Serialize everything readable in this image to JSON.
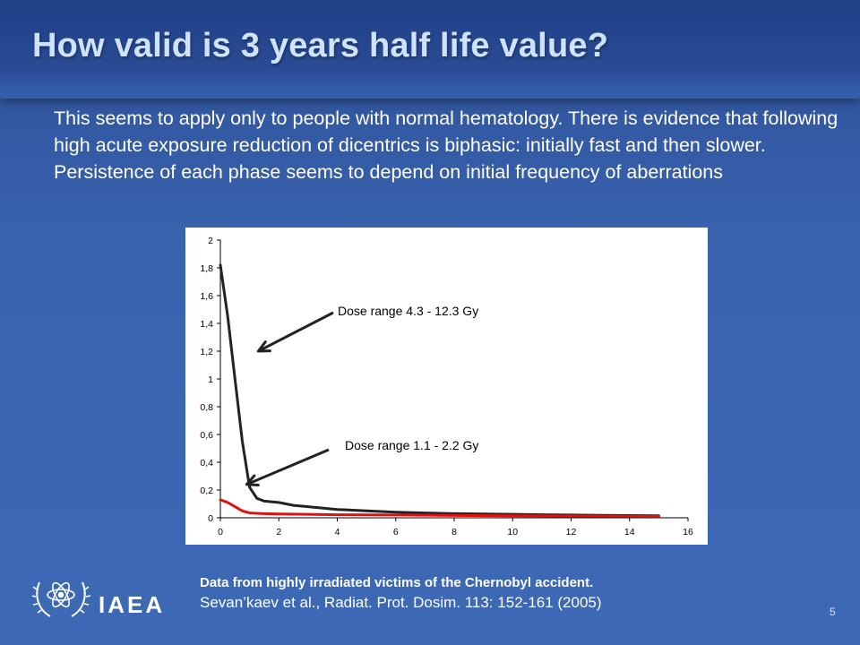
{
  "slide": {
    "title": "How valid is 3 years half life value?",
    "body": "This seems to apply only to people with normal hematology. There is evidence that following high acute exposure reduction of dicentrics is biphasic: initially fast and then slower. Persistence of each phase seems to depend on initial frequency of aberrations",
    "caption_line1": "Data from highly irradiated victims of the Chernobyl accident.",
    "caption_line2": "Sevan’kaev et al., Radiat. Prot. Dosim. 113: 152-161 (2005)",
    "logo_text": "IAEA",
    "page_number": "5"
  },
  "chart_data": {
    "type": "line",
    "title": "",
    "xlabel": "",
    "ylabel": "",
    "xlim": [
      0,
      16
    ],
    "ylim": [
      0,
      2
    ],
    "x_ticks": [
      "0",
      "2",
      "4",
      "6",
      "8",
      "10",
      "12",
      "14",
      "16"
    ],
    "y_ticks": [
      "0",
      "0,2",
      "0,4",
      "0,6",
      "0,8",
      "1",
      "1,2",
      "1,4",
      "1,6",
      "1,8",
      "2"
    ],
    "grid": false,
    "legend": "none",
    "series": [
      {
        "color": "#222222",
        "x": [
          0,
          0.25,
          0.5,
          0.75,
          1.0,
          1.25,
          1.5,
          2,
          2.5,
          3,
          4,
          5,
          6,
          7,
          8,
          9,
          10,
          11,
          12,
          13,
          14,
          15
        ],
        "y": [
          1.82,
          1.45,
          1.0,
          0.55,
          0.22,
          0.14,
          0.12,
          0.11,
          0.09,
          0.08,
          0.06,
          0.05,
          0.04,
          0.035,
          0.03,
          0.028,
          0.025,
          0.022,
          0.02,
          0.018,
          0.016,
          0.015
        ]
      },
      {
        "color": "#e01010",
        "x": [
          0,
          0.25,
          0.5,
          0.75,
          1.0,
          1.5,
          2,
          3,
          4,
          6,
          8,
          10,
          12,
          14,
          15
        ],
        "y": [
          0.13,
          0.11,
          0.08,
          0.05,
          0.035,
          0.03,
          0.028,
          0.025,
          0.022,
          0.02,
          0.017,
          0.015,
          0.013,
          0.011,
          0.01
        ]
      }
    ],
    "annotations": [
      {
        "text": "Dose range 4.3 - 12.3 Gy",
        "arrow_to": [
          1.3,
          1.2
        ]
      },
      {
        "text": "Dose range 1.1 - 2.2 Gy",
        "arrow_to": [
          0.9,
          0.24
        ]
      }
    ]
  }
}
